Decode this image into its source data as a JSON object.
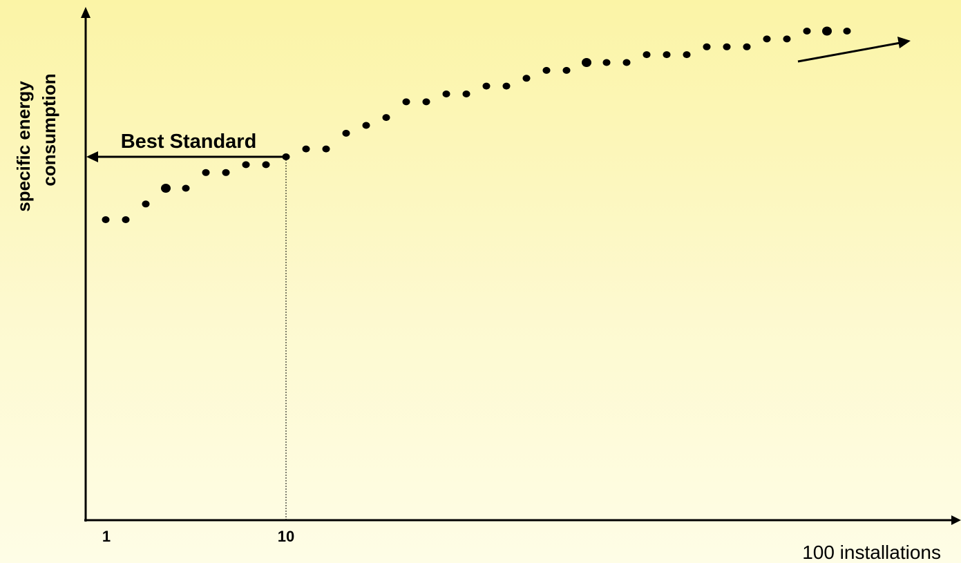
{
  "chart_data": {
    "type": "scatter",
    "ylabel_line1": "specific energy",
    "ylabel_line2": "consumption",
    "xlabel": "100 installations",
    "xticks": [
      "1",
      "10"
    ],
    "annotation": "Best Standard",
    "reference_x": 10,
    "grid": false,
    "legend": "none",
    "point_color": "#000000",
    "points": [
      [
        1,
        73
      ],
      [
        2,
        73
      ],
      [
        3,
        75
      ],
      [
        4,
        77
      ],
      [
        5,
        77
      ],
      [
        6,
        79
      ],
      [
        7,
        79
      ],
      [
        8,
        80
      ],
      [
        9,
        80
      ],
      [
        10,
        81
      ],
      [
        11,
        82
      ],
      [
        12,
        82
      ],
      [
        13,
        84
      ],
      [
        14,
        85
      ],
      [
        15,
        86
      ],
      [
        16,
        88
      ],
      [
        17,
        88
      ],
      [
        18,
        89
      ],
      [
        19,
        89
      ],
      [
        20,
        90
      ],
      [
        21,
        90
      ],
      [
        22,
        91
      ],
      [
        23,
        92
      ],
      [
        24,
        92
      ],
      [
        25,
        93
      ],
      [
        26,
        93
      ],
      [
        27,
        93
      ],
      [
        28,
        94
      ],
      [
        29,
        94
      ],
      [
        30,
        94
      ],
      [
        31,
        95
      ],
      [
        32,
        95
      ],
      [
        33,
        95
      ],
      [
        34,
        96
      ],
      [
        35,
        96
      ],
      [
        36,
        97
      ],
      [
        37,
        97
      ],
      [
        38,
        97
      ]
    ],
    "best_standard_y": 81,
    "xlim": [
      0,
      44
    ],
    "ylim": [
      0,
      100
    ]
  }
}
